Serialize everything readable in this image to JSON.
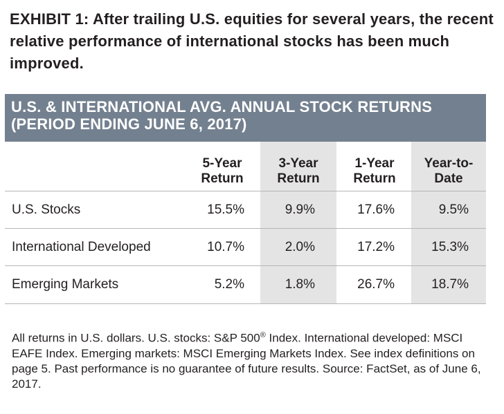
{
  "exhibit": {
    "title": "EXHIBIT 1: After trailing U.S. equities for several years, the recent relative performance of international stocks has been much improved."
  },
  "table": {
    "header_line1": "U.S. & INTERNATIONAL AVG. ANNUAL STOCK RETURNS",
    "header_line2": "(PERIOD ENDING JUNE 6, 2017)",
    "header_color": "#73808f",
    "shade_color": "#e4e4e4",
    "columns": [
      {
        "line1": "5-Year",
        "line2": "Return"
      },
      {
        "line1": "3-Year",
        "line2": "Return"
      },
      {
        "line1": "1-Year",
        "line2": "Return"
      },
      {
        "line1": "Year-to-",
        "line2": "Date"
      }
    ],
    "rows": [
      {
        "label": "U.S. Stocks",
        "values": [
          "15.5%",
          "9.9%",
          "17.6%",
          "9.5%"
        ]
      },
      {
        "label": "International Developed",
        "values": [
          "10.7%",
          "2.0%",
          "17.2%",
          "15.3%"
        ]
      },
      {
        "label": "Emerging Markets",
        "values": [
          "5.2%",
          "1.8%",
          "26.7%",
          "18.7%"
        ]
      }
    ]
  },
  "footnote": {
    "text_before": "All returns in U.S. dollars. U.S. stocks: S&P 500",
    "registered_mark": "®",
    "text_after": " Index. International developed: MSCI EAFE Index. Emerging markets: MSCI Emerging Markets Index. See index definitions on page 5. Past performance is no guarantee of future results. Source: FactSet, as of June 6, 2017."
  }
}
